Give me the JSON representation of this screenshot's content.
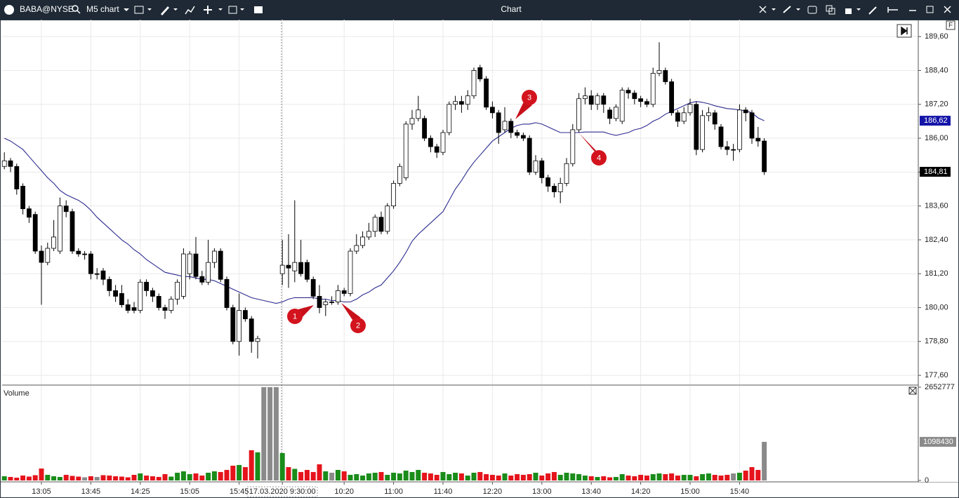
{
  "window": {
    "symbol": "BABA@NYSE",
    "timeframe": "M5 chart",
    "title": "Chart",
    "panel_button": "F"
  },
  "chart_data": {
    "type": "candlestick",
    "categories": [
      null,
      null,
      null,
      null,
      null,
      null,
      "13:05",
      null,
      null,
      null,
      null,
      null,
      null,
      null,
      "13:45",
      null,
      null,
      null,
      null,
      null,
      null,
      null,
      "14:25",
      null,
      null,
      null,
      null,
      null,
      null,
      null,
      "15:05",
      null,
      null,
      null,
      null,
      null,
      null,
      null,
      "15:45",
      null,
      null,
      null,
      null,
      null,
      null,
      "17.03.2020 9:30:00",
      null,
      null,
      null,
      null,
      null,
      null,
      null,
      null,
      null,
      "10:20",
      null,
      null,
      null,
      null,
      null,
      null,
      null,
      "11:00",
      null,
      null,
      null,
      null,
      null,
      null,
      null,
      "11:40",
      null,
      null,
      null,
      null,
      null,
      null,
      null,
      "12:20",
      null,
      null,
      null,
      null,
      null,
      null,
      null,
      "13:00",
      null,
      null,
      null,
      null,
      null,
      null,
      null,
      "13:40",
      null,
      null,
      null,
      null,
      null,
      null,
      null,
      "14:20",
      null,
      null,
      null,
      null,
      null,
      null,
      null,
      "15:00",
      null,
      null,
      null,
      null,
      null,
      null,
      null,
      "15:40",
      null,
      null,
      null,
      null
    ],
    "open": [
      185.0,
      185.2,
      185.0,
      184.3,
      183.5,
      183.3,
      182.0,
      181.6,
      182.1,
      182.0,
      183.6,
      183.4,
      182.0,
      181.9,
      181.9,
      181.2,
      181.3,
      181.0,
      180.6,
      180.5,
      180.1,
      180.0,
      179.9,
      180.9,
      180.6,
      180.4,
      180.0,
      179.9,
      180.3,
      180.4,
      181.2,
      181.9,
      181.1,
      180.9,
      181.6,
      182.0,
      181.0,
      180.0,
      178.8,
      179.9,
      179.6,
      178.8,
      null,
      null,
      null,
      181.2,
      181.5,
      181.3,
      181.6,
      181.6,
      181.0,
      180.4,
      180.1,
      180.2,
      180.2,
      180.6,
      180.5,
      182.0,
      182.2,
      182.5,
      182.7,
      183.2,
      182.7,
      183.6,
      184.4,
      184.6,
      186.5,
      186.7,
      186.7,
      186.0,
      185.7,
      185.5,
      186.2,
      187.2,
      187.3,
      187.2,
      187.5,
      188.5,
      188.1,
      187.1,
      186.9,
      186.3,
      186.6,
      186.2,
      186.1,
      186.0,
      184.8,
      185.2,
      184.6,
      184.3,
      184.1,
      184.4,
      185.1,
      186.3,
      187.4,
      187.5,
      187.2,
      187.5,
      187.0,
      186.7,
      186.6,
      187.7,
      187.6,
      187.4,
      187.3,
      187.2,
      188.3,
      188.4,
      188.0,
      186.9,
      186.6,
      186.9,
      187.2,
      185.6,
      186.8,
      186.9,
      186.4,
      185.7,
      185.6,
      185.6,
      187.0,
      186.9,
      186.0,
      185.9
    ],
    "high": [
      185.5,
      185.3,
      185.1,
      184.4,
      183.6,
      183.4,
      182.2,
      182.3,
      183.1,
      183.9,
      183.8,
      183.5,
      182.1,
      182.0,
      182.0,
      181.4,
      181.4,
      181.1,
      180.8,
      180.8,
      180.3,
      180.2,
      181.0,
      181.0,
      180.7,
      180.5,
      180.1,
      180.4,
      181.0,
      182.1,
      182.0,
      182.5,
      181.3,
      182.4,
      182.1,
      182.1,
      181.1,
      180.1,
      180.5,
      180.0,
      179.7,
      179.0,
      null,
      null,
      null,
      182.4,
      182.6,
      183.8,
      182.4,
      181.7,
      181.1,
      180.8,
      180.3,
      180.4,
      180.8,
      180.7,
      182.1,
      182.6,
      182.7,
      183.0,
      183.3,
      183.4,
      183.7,
      184.5,
      185.1,
      186.6,
      187.0,
      187.5,
      186.8,
      186.1,
      185.8,
      186.3,
      187.3,
      187.5,
      187.5,
      187.7,
      188.5,
      188.6,
      188.2,
      187.3,
      187.0,
      187.1,
      186.7,
      186.3,
      186.2,
      186.1,
      185.4,
      185.3,
      184.7,
      184.4,
      184.6,
      185.3,
      186.5,
      187.6,
      187.8,
      187.7,
      187.6,
      187.6,
      187.1,
      187.2,
      187.8,
      187.8,
      187.7,
      187.5,
      187.4,
      188.5,
      189.4,
      188.5,
      188.1,
      187.0,
      187.1,
      187.4,
      187.3,
      187.0,
      187.1,
      187.0,
      186.5,
      185.9,
      185.8,
      187.2,
      187.1,
      187.0,
      186.4,
      186.0
    ],
    "low": [
      184.9,
      184.8,
      184.0,
      183.3,
      183.0,
      181.9,
      180.1,
      181.5,
      182.0,
      181.9,
      183.2,
      181.9,
      181.8,
      181.7,
      181.0,
      181.0,
      180.8,
      180.4,
      180.2,
      180.0,
      179.8,
      179.8,
      179.8,
      180.4,
      180.2,
      179.9,
      179.6,
      179.8,
      180.1,
      180.3,
      181.0,
      181.0,
      180.8,
      180.8,
      181.4,
      180.9,
      179.9,
      178.7,
      178.3,
      179.5,
      178.4,
      178.2,
      null,
      null,
      null,
      180.8,
      180.7,
      180.9,
      181.1,
      180.9,
      180.3,
      179.8,
      179.7,
      180.1,
      180.1,
      180.4,
      180.4,
      181.9,
      182.1,
      182.4,
      182.5,
      182.6,
      182.6,
      183.5,
      184.3,
      184.5,
      186.3,
      186.6,
      185.9,
      185.5,
      185.3,
      185.4,
      186.1,
      187.0,
      186.9,
      187.0,
      187.4,
      188.0,
      187.0,
      186.7,
      185.8,
      186.2,
      186.0,
      186.0,
      185.9,
      184.7,
      184.7,
      184.4,
      184.1,
      183.9,
      183.7,
      184.3,
      185.0,
      186.2,
      187.2,
      187.0,
      187.0,
      186.9,
      186.5,
      186.6,
      186.5,
      187.4,
      187.2,
      187.1,
      187.1,
      187.1,
      188.2,
      187.9,
      186.8,
      186.4,
      186.5,
      186.8,
      185.4,
      185.5,
      186.6,
      186.3,
      185.6,
      185.4,
      185.2,
      185.5,
      186.6,
      185.8,
      185.7,
      184.7
    ],
    "close": [
      185.2,
      185.0,
      184.2,
      183.5,
      183.2,
      182.0,
      181.6,
      182.1,
      182.5,
      183.6,
      183.4,
      182.0,
      181.9,
      181.9,
      181.2,
      181.2,
      181.0,
      180.6,
      180.4,
      180.1,
      179.9,
      179.9,
      180.9,
      180.6,
      180.4,
      180.0,
      179.9,
      180.3,
      180.9,
      181.9,
      181.9,
      181.1,
      180.9,
      181.6,
      182.0,
      181.0,
      180.0,
      178.8,
      179.9,
      179.6,
      178.8,
      178.9,
      null,
      null,
      null,
      181.5,
      181.4,
      181.6,
      181.2,
      181.0,
      180.4,
      180.0,
      180.2,
      180.2,
      180.6,
      180.5,
      182.0,
      182.2,
      182.5,
      182.7,
      183.2,
      182.7,
      183.6,
      184.4,
      185.0,
      186.5,
      186.7,
      187.0,
      186.0,
      185.7,
      185.5,
      186.2,
      187.2,
      187.3,
      187.2,
      187.5,
      188.4,
      188.1,
      187.1,
      186.9,
      186.2,
      186.6,
      186.2,
      186.1,
      186.0,
      184.8,
      185.2,
      184.6,
      184.3,
      184.1,
      184.4,
      185.1,
      186.3,
      187.4,
      187.5,
      187.2,
      187.5,
      187.2,
      186.7,
      187.1,
      187.7,
      187.6,
      187.4,
      187.3,
      187.2,
      188.3,
      188.4,
      188.0,
      186.9,
      186.6,
      186.9,
      187.2,
      185.6,
      186.8,
      186.9,
      186.5,
      185.7,
      185.6,
      185.6,
      187.0,
      186.9,
      186.0,
      185.9,
      184.81
    ],
    "close_label": "184,81",
    "up_color": "#ffffff",
    "down_color": "#000000",
    "ma": {
      "color": "#2b2b8f",
      "label": "186,62",
      "tag_color": "#1414a8",
      "values": [
        186.0,
        185.9,
        185.75,
        185.6,
        185.35,
        185.1,
        184.85,
        184.6,
        184.4,
        184.15,
        184.0,
        183.9,
        183.8,
        183.65,
        183.45,
        183.2,
        183.0,
        182.8,
        182.6,
        182.4,
        182.25,
        182.05,
        181.9,
        181.7,
        181.55,
        181.4,
        181.25,
        181.2,
        181.15,
        181.1,
        181.1,
        181.05,
        181.0,
        181.0,
        180.95,
        180.85,
        180.75,
        180.65,
        180.55,
        180.45,
        180.35,
        180.3,
        180.25,
        180.2,
        180.15,
        180.2,
        180.3,
        180.35,
        180.35,
        180.35,
        180.35,
        180.3,
        180.3,
        180.25,
        180.25,
        180.2,
        180.2,
        180.3,
        180.45,
        180.55,
        180.7,
        180.8,
        181.05,
        181.3,
        181.6,
        181.95,
        182.35,
        182.6,
        182.8,
        183.0,
        183.2,
        183.4,
        183.8,
        184.2,
        184.5,
        184.85,
        185.15,
        185.4,
        185.65,
        185.9,
        186.05,
        186.2,
        186.35,
        186.45,
        186.5,
        186.5,
        186.55,
        186.5,
        186.4,
        186.3,
        186.2,
        186.2,
        186.2,
        186.2,
        186.22,
        186.22,
        186.22,
        186.22,
        186.15,
        186.1,
        186.15,
        186.2,
        186.3,
        186.35,
        186.45,
        186.6,
        186.7,
        186.85,
        186.95,
        187.05,
        187.15,
        187.25,
        187.3,
        187.27,
        187.22,
        187.15,
        187.1,
        187.05,
        187.03,
        187.0,
        186.97,
        186.9,
        186.72,
        186.62
      ]
    },
    "ylim": [
      177.28,
      190.2
    ],
    "yticks": [
      {
        "value": 189.6,
        "label": "189,60"
      },
      {
        "value": 188.4,
        "label": "188,40"
      },
      {
        "value": 187.2,
        "label": "187,20"
      },
      {
        "value": 186.0,
        "label": "186,00"
      },
      {
        "value": 184.8,
        "label": "184,80"
      },
      {
        "value": 183.6,
        "label": "183,60"
      },
      {
        "value": 182.4,
        "label": "182,40"
      },
      {
        "value": 181.2,
        "label": "181,20"
      },
      {
        "value": 180.0,
        "label": "180,00"
      },
      {
        "value": 178.8,
        "label": "178,80"
      },
      {
        "value": 177.6,
        "label": "177,60"
      }
    ],
    "grid": true,
    "annotations": [
      "1",
      "2",
      "3",
      "4"
    ],
    "volume": {
      "title": "Volume",
      "up_color": "#1a8c1a",
      "down_color": "#e5141c",
      "other_color": "#8a8a8a",
      "ylim": [
        0,
        2652777
      ],
      "yticks": [
        2652777,
        0
      ],
      "values": [
        120000,
        100000,
        80000,
        140000,
        110000,
        150000,
        340000,
        160000,
        120000,
        100000,
        160000,
        130000,
        110000,
        90000,
        120000,
        100000,
        150000,
        140000,
        120000,
        110000,
        90000,
        160000,
        200000,
        140000,
        120000,
        100000,
        180000,
        110000,
        220000,
        260000,
        180000,
        200000,
        140000,
        220000,
        260000,
        240000,
        300000,
        420000,
        440000,
        380000,
        860000,
        800000,
        2652777,
        2652777,
        2652777,
        780000,
        380000,
        330000,
        240000,
        300000,
        240000,
        460000,
        260000,
        220000,
        300000,
        260000,
        160000,
        180000,
        140000,
        200000,
        220000,
        240000,
        160000,
        220000,
        200000,
        280000,
        240000,
        300000,
        220000,
        200000,
        160000,
        240000,
        180000,
        220000,
        200000,
        140000,
        220000,
        240000,
        180000,
        160000,
        140000,
        200000,
        140000,
        180000,
        160000,
        180000,
        220000,
        140000,
        200000,
        240000,
        160000,
        220000,
        200000,
        180000,
        140000,
        120000,
        100000,
        120000,
        90000,
        100000,
        180000,
        140000,
        120000,
        160000,
        140000,
        180000,
        200000,
        180000,
        200000,
        140000,
        160000,
        160000,
        120000,
        180000,
        200000,
        160000,
        140000,
        160000,
        200000,
        220000,
        280000,
        380000,
        300000,
        1098430
      ]
    }
  }
}
